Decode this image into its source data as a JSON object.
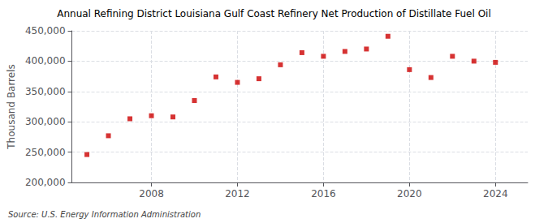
{
  "chart_data": {
    "type": "scatter",
    "title": "Annual Refining District Louisiana Gulf Coast Refinery Net Production of Distillate Fuel Oil",
    "ylabel": "Thousand Barrels",
    "annotation": "Source: U.S. Energy Information Administration",
    "x": [
      2005,
      2006,
      2007,
      2008,
      2009,
      2010,
      2011,
      2012,
      2013,
      2014,
      2015,
      2016,
      2017,
      2018,
      2019,
      2020,
      2021,
      2022,
      2023,
      2024
    ],
    "values": [
      246000,
      277000,
      305000,
      310000,
      308000,
      335000,
      374000,
      365000,
      371000,
      394000,
      414000,
      408000,
      416000,
      420000,
      441000,
      386000,
      373000,
      408000,
      400000,
      398000
    ],
    "color": "#cc0000",
    "marker": "square",
    "xlim": [
      2004.3,
      2025.5
    ],
    "xticks": [
      2008,
      2012,
      2016,
      2020,
      2024
    ],
    "ylim": [
      200000,
      450000
    ],
    "yticks": [
      {
        "value": 200000,
        "label": "200,000"
      },
      {
        "value": 250000,
        "label": "250,000"
      },
      {
        "value": 300000,
        "label": "300,000"
      },
      {
        "value": 350000,
        "label": "350,000"
      },
      {
        "value": 400000,
        "label": "400,000"
      },
      {
        "value": 450000,
        "label": "450,000"
      }
    ],
    "grid": true
  }
}
